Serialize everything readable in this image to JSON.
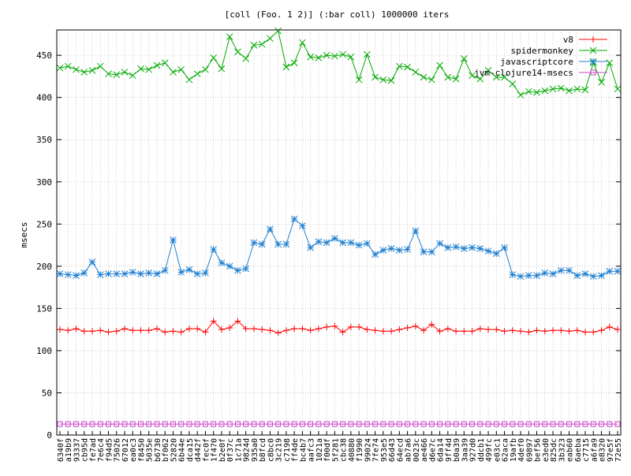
{
  "chart_data": {
    "type": "line",
    "title": "[coll (Foo. 1 2)] (:bar coll) 1000000 iters",
    "xlabel": "",
    "ylabel": "msecs",
    "ylim": [
      0,
      480
    ],
    "yticks": [
      0,
      50,
      100,
      150,
      200,
      250,
      300,
      350,
      400,
      450
    ],
    "grid": true,
    "legend_position": "top-right",
    "categories": [
      "6340f",
      "a19b9",
      "93337",
      "cb95d",
      "fe7ad",
      "7e6c4",
      "f94d5",
      "75026",
      "67012",
      "ea0c3",
      "f8450",
      "5035e",
      "b6730",
      "bf062",
      "52820",
      "6b44e",
      "dca15",
      "d442f",
      "fec0f",
      "1f470",
      "b2e0f",
      "0f37c",
      "1c71a",
      "9824d",
      "935a0",
      "b8fcd",
      "c8bc0",
      "3c219",
      "c7198",
      "ff4de",
      "bc4b7",
      "aafc3",
      "1021a",
      "f00df",
      "5f281",
      "cbc38",
      "40880",
      "f1990",
      "99024",
      "7fe74",
      "953e5",
      "66d43",
      "64ecd",
      "ab7a6",
      "0023c",
      "ae466",
      "d6e7c",
      "6da14",
      "9ff4d",
      "b0a39",
      "3aa39",
      "927d0",
      "ddcb1",
      "499fc",
      "e03c1",
      "62aca",
      "19afb",
      "4def0",
      "69897",
      "bef56",
      "e3ed0",
      "825dc",
      "3b323",
      "eab60",
      "6aeba",
      "c7715",
      "a6fa9",
      "e8320",
      "97e5f",
      "72e55"
    ],
    "series": [
      {
        "name": "v8",
        "color": "#ff0000",
        "marker": "plus",
        "values": [
          125,
          124,
          126,
          123,
          123,
          124,
          122,
          123,
          126,
          124,
          124,
          124,
          126,
          122,
          123,
          122,
          126,
          126,
          122,
          135,
          125,
          127,
          135,
          126,
          126,
          125,
          124,
          121,
          124,
          126,
          126,
          124,
          126,
          128,
          129,
          122,
          128,
          128,
          125,
          124,
          123,
          123,
          125,
          127,
          129,
          124,
          131,
          123,
          126,
          123,
          123,
          123,
          126,
          125,
          125,
          123,
          124,
          123,
          122,
          124,
          123,
          124,
          124,
          123,
          124,
          122,
          122,
          124,
          128,
          125
        ]
      },
      {
        "name": "spidermonkey",
        "color": "#00aa00",
        "marker": "cross",
        "values": [
          435,
          437,
          433,
          430,
          432,
          437,
          428,
          427,
          430,
          426,
          434,
          433,
          438,
          441,
          430,
          433,
          421,
          428,
          433,
          447,
          434,
          472,
          454,
          446,
          462,
          463,
          470,
          479,
          436,
          441,
          465,
          448,
          447,
          450,
          449,
          451,
          448,
          421,
          451,
          424,
          421,
          420,
          437,
          436,
          430,
          424,
          421,
          438,
          424,
          422,
          446,
          426,
          422,
          432,
          424,
          424,
          416,
          403,
          407,
          406,
          408,
          410,
          411,
          408,
          410,
          409,
          441,
          418,
          441,
          410
        ]
      },
      {
        "name": "javascriptcore",
        "color": "#1f7fd0",
        "marker": "star",
        "values": [
          191,
          190,
          189,
          192,
          205,
          190,
          191,
          191,
          191,
          193,
          191,
          192,
          191,
          195,
          231,
          193,
          196,
          191,
          192,
          220,
          204,
          200,
          195,
          197,
          228,
          226,
          244,
          226,
          226,
          256,
          248,
          222,
          229,
          228,
          233,
          228,
          228,
          225,
          227,
          214,
          219,
          221,
          219,
          220,
          242,
          217,
          217,
          227,
          222,
          223,
          221,
          222,
          221,
          218,
          215,
          222,
          190,
          188,
          189,
          189,
          192,
          191,
          195,
          195,
          189,
          191,
          188,
          189,
          194,
          194
        ]
      },
      {
        "name": "jvm-clojure14-msecs",
        "color": "#cc44cc",
        "marker": "square",
        "values": [
          13,
          13,
          13,
          13,
          13,
          13,
          13,
          13,
          13,
          13,
          13,
          13,
          13,
          13,
          13,
          13,
          13,
          13,
          13,
          13,
          13,
          13,
          13,
          13,
          13,
          13,
          13,
          13,
          13,
          13,
          13,
          13,
          13,
          13,
          13,
          13,
          13,
          13,
          13,
          13,
          13,
          13,
          13,
          13,
          13,
          13,
          13,
          13,
          13,
          13,
          13,
          13,
          13,
          13,
          13,
          13,
          13,
          13,
          13,
          13,
          13,
          13,
          13,
          13,
          13,
          13,
          13,
          13,
          13,
          13
        ]
      }
    ]
  }
}
